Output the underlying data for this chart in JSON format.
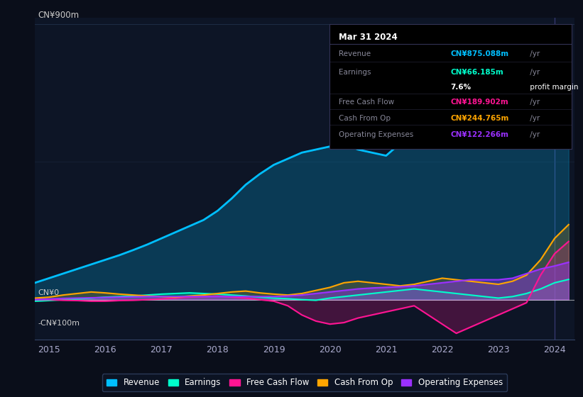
{
  "bg_color": "#0a0e1a",
  "chart_bg": "#0d1526",
  "grid_color": "#1e2d45",
  "zero_line_color": "#ffffff",
  "ylabel_text": "CN¥900m",
  "ylabel2_text": "CN¥0",
  "ylabel3_text": "-CN¥100m",
  "ylim": [
    -130,
    920
  ],
  "xlim": [
    2014.75,
    2024.35
  ],
  "xticks": [
    2015,
    2016,
    2017,
    2018,
    2019,
    2020,
    2021,
    2022,
    2023,
    2024
  ],
  "revenue_color": "#00bfff",
  "earnings_color": "#00ffcc",
  "fcf_color": "#ff1493",
  "cashop_color": "#ffa500",
  "opex_color": "#9b30ff",
  "years": [
    2014.75,
    2015.0,
    2015.25,
    2015.5,
    2015.75,
    2016.0,
    2016.25,
    2016.5,
    2016.75,
    2017.0,
    2017.25,
    2017.5,
    2017.75,
    2018.0,
    2018.25,
    2018.5,
    2018.75,
    2019.0,
    2019.25,
    2019.5,
    2019.75,
    2020.0,
    2020.25,
    2020.5,
    2020.75,
    2021.0,
    2021.25,
    2021.5,
    2021.75,
    2022.0,
    2022.25,
    2022.5,
    2022.75,
    2023.0,
    2023.25,
    2023.5,
    2023.75,
    2024.0,
    2024.25
  ],
  "revenue": [
    55,
    70,
    85,
    100,
    115,
    130,
    145,
    162,
    180,
    200,
    220,
    240,
    260,
    290,
    330,
    375,
    410,
    440,
    460,
    480,
    490,
    500,
    510,
    490,
    480,
    470,
    510,
    560,
    600,
    620,
    650,
    680,
    640,
    600,
    640,
    700,
    760,
    830,
    875
  ],
  "earnings": [
    -5,
    -3,
    0,
    2,
    5,
    8,
    10,
    12,
    15,
    18,
    20,
    22,
    20,
    18,
    15,
    12,
    8,
    5,
    3,
    0,
    -2,
    5,
    10,
    15,
    20,
    25,
    30,
    35,
    30,
    25,
    20,
    15,
    10,
    5,
    10,
    20,
    35,
    55,
    66
  ],
  "fcf": [
    0,
    0,
    -2,
    -3,
    -5,
    -5,
    -3,
    -2,
    0,
    2,
    5,
    8,
    10,
    12,
    8,
    5,
    0,
    -5,
    -20,
    -50,
    -70,
    -80,
    -75,
    -60,
    -50,
    -40,
    -30,
    -20,
    -50,
    -80,
    -110,
    -90,
    -70,
    -50,
    -30,
    -10,
    80,
    150,
    190
  ],
  "cashop": [
    5,
    8,
    15,
    20,
    25,
    22,
    18,
    15,
    12,
    10,
    8,
    12,
    15,
    20,
    25,
    28,
    22,
    18,
    15,
    20,
    30,
    40,
    55,
    60,
    55,
    50,
    45,
    50,
    60,
    70,
    65,
    60,
    55,
    50,
    60,
    80,
    130,
    200,
    245
  ],
  "opex": [
    0,
    2,
    4,
    5,
    6,
    7,
    8,
    9,
    10,
    10,
    10,
    10,
    10,
    10,
    10,
    10,
    10,
    10,
    12,
    15,
    20,
    25,
    30,
    35,
    38,
    40,
    42,
    45,
    50,
    55,
    60,
    65,
    65,
    65,
    70,
    85,
    100,
    110,
    122
  ],
  "highlight_x": 2024.0,
  "tooltip_title": "Mar 31 2024",
  "tooltip_rows": [
    {
      "label": "Revenue",
      "value": "CN¥875.088m",
      "unit": " /yr",
      "color": "#00bfff"
    },
    {
      "label": "Earnings",
      "value": "CN¥66.185m",
      "unit": " /yr",
      "color": "#00ffcc"
    },
    {
      "label": "",
      "value": "7.6%",
      "unit": " profit margin",
      "color": "#ffffff"
    },
    {
      "label": "Free Cash Flow",
      "value": "CN¥189.902m",
      "unit": " /yr",
      "color": "#ff1493"
    },
    {
      "label": "Cash From Op",
      "value": "CN¥244.765m",
      "unit": " /yr",
      "color": "#ffa500"
    },
    {
      "label": "Operating Expenses",
      "value": "CN¥122.266m",
      "unit": " /yr",
      "color": "#9b30ff"
    }
  ],
  "legend_items": [
    "Revenue",
    "Earnings",
    "Free Cash Flow",
    "Cash From Op",
    "Operating Expenses"
  ],
  "legend_colors": [
    "#00bfff",
    "#00ffcc",
    "#ff1493",
    "#ffa500",
    "#9b30ff"
  ]
}
